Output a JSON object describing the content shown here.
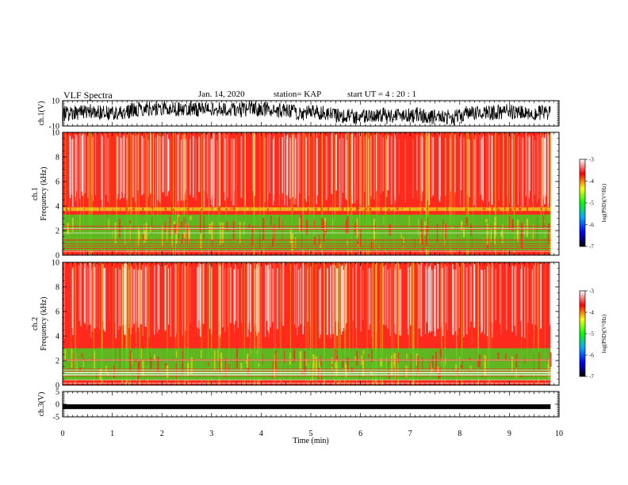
{
  "header": {
    "title": "VLF Spectra",
    "date": "Jan. 14, 2020",
    "station": "station= KAP",
    "start": "start  UT =   4 : 20 : 1"
  },
  "colors": {
    "spectrogram_background": "#ff2a1c",
    "band_green": "#33dd22",
    "band_yellow": "#e8d21a",
    "streak_white": "#ffffff",
    "waveform_line": "#000000"
  },
  "colorbar": {
    "label": "log(PSD)(V²/Hz)",
    "ticks": [
      "-3",
      "-4",
      "-5",
      "-6",
      "-7"
    ],
    "range": [
      -7,
      -3
    ],
    "stops": [
      "#000000",
      "#0000ff",
      "#00aaff",
      "#00ff00",
      "#ffff00",
      "#ff0000",
      "#ffffff"
    ]
  },
  "chart_data": [
    {
      "type": "line",
      "panel": "ch1-waveform",
      "ylabel": "ch.1(V)",
      "ylim": [
        -10,
        10
      ],
      "yticks": [
        "10",
        "-10"
      ],
      "xlim": [
        0,
        10
      ],
      "x_end": 9.83,
      "description_of_values": "noisy waveform fluctuating mostly between -10 and +10 V"
    },
    {
      "type": "heatmap",
      "panel": "ch1-spectrogram",
      "ylabel": "ch.1\nFrequency (kHz)",
      "ylim": [
        0,
        10
      ],
      "yticks": [
        "0",
        "2",
        "4",
        "6",
        "8",
        "10"
      ],
      "xlim": [
        0,
        10
      ],
      "x_end": 9.83,
      "background_log_psd": -3.5,
      "bands": [
        {
          "from_khz": 0.4,
          "to_khz": 3.3,
          "log_psd": -5.0
        },
        {
          "from_khz": 3.6,
          "to_khz": 3.9,
          "log_psd": -4.3
        }
      ]
    },
    {
      "type": "heatmap",
      "panel": "ch2-spectrogram",
      "ylabel": "ch.2\nFrequency (kHz)",
      "ylim": [
        0,
        10
      ],
      "yticks": [
        "0",
        "2",
        "4",
        "6",
        "8",
        "10"
      ],
      "xlim": [
        0,
        10
      ],
      "x_end": 9.83,
      "background_log_psd": -3.5,
      "bands": [
        {
          "from_khz": 0.4,
          "to_khz": 3.0,
          "log_psd": -5.0
        }
      ]
    },
    {
      "type": "line",
      "panel": "ch3-waveform",
      "ylabel": "ch.3(V)",
      "ylim": [
        -5,
        5
      ],
      "yticks": [
        "5",
        "0",
        "-5"
      ],
      "xlim": [
        0,
        10
      ],
      "x_end": 9.83,
      "level": -1.0
    }
  ],
  "x_axis": {
    "label": "Time (min)",
    "ticks": [
      "0",
      "1",
      "2",
      "3",
      "4",
      "5",
      "6",
      "7",
      "8",
      "9",
      "10"
    ]
  }
}
